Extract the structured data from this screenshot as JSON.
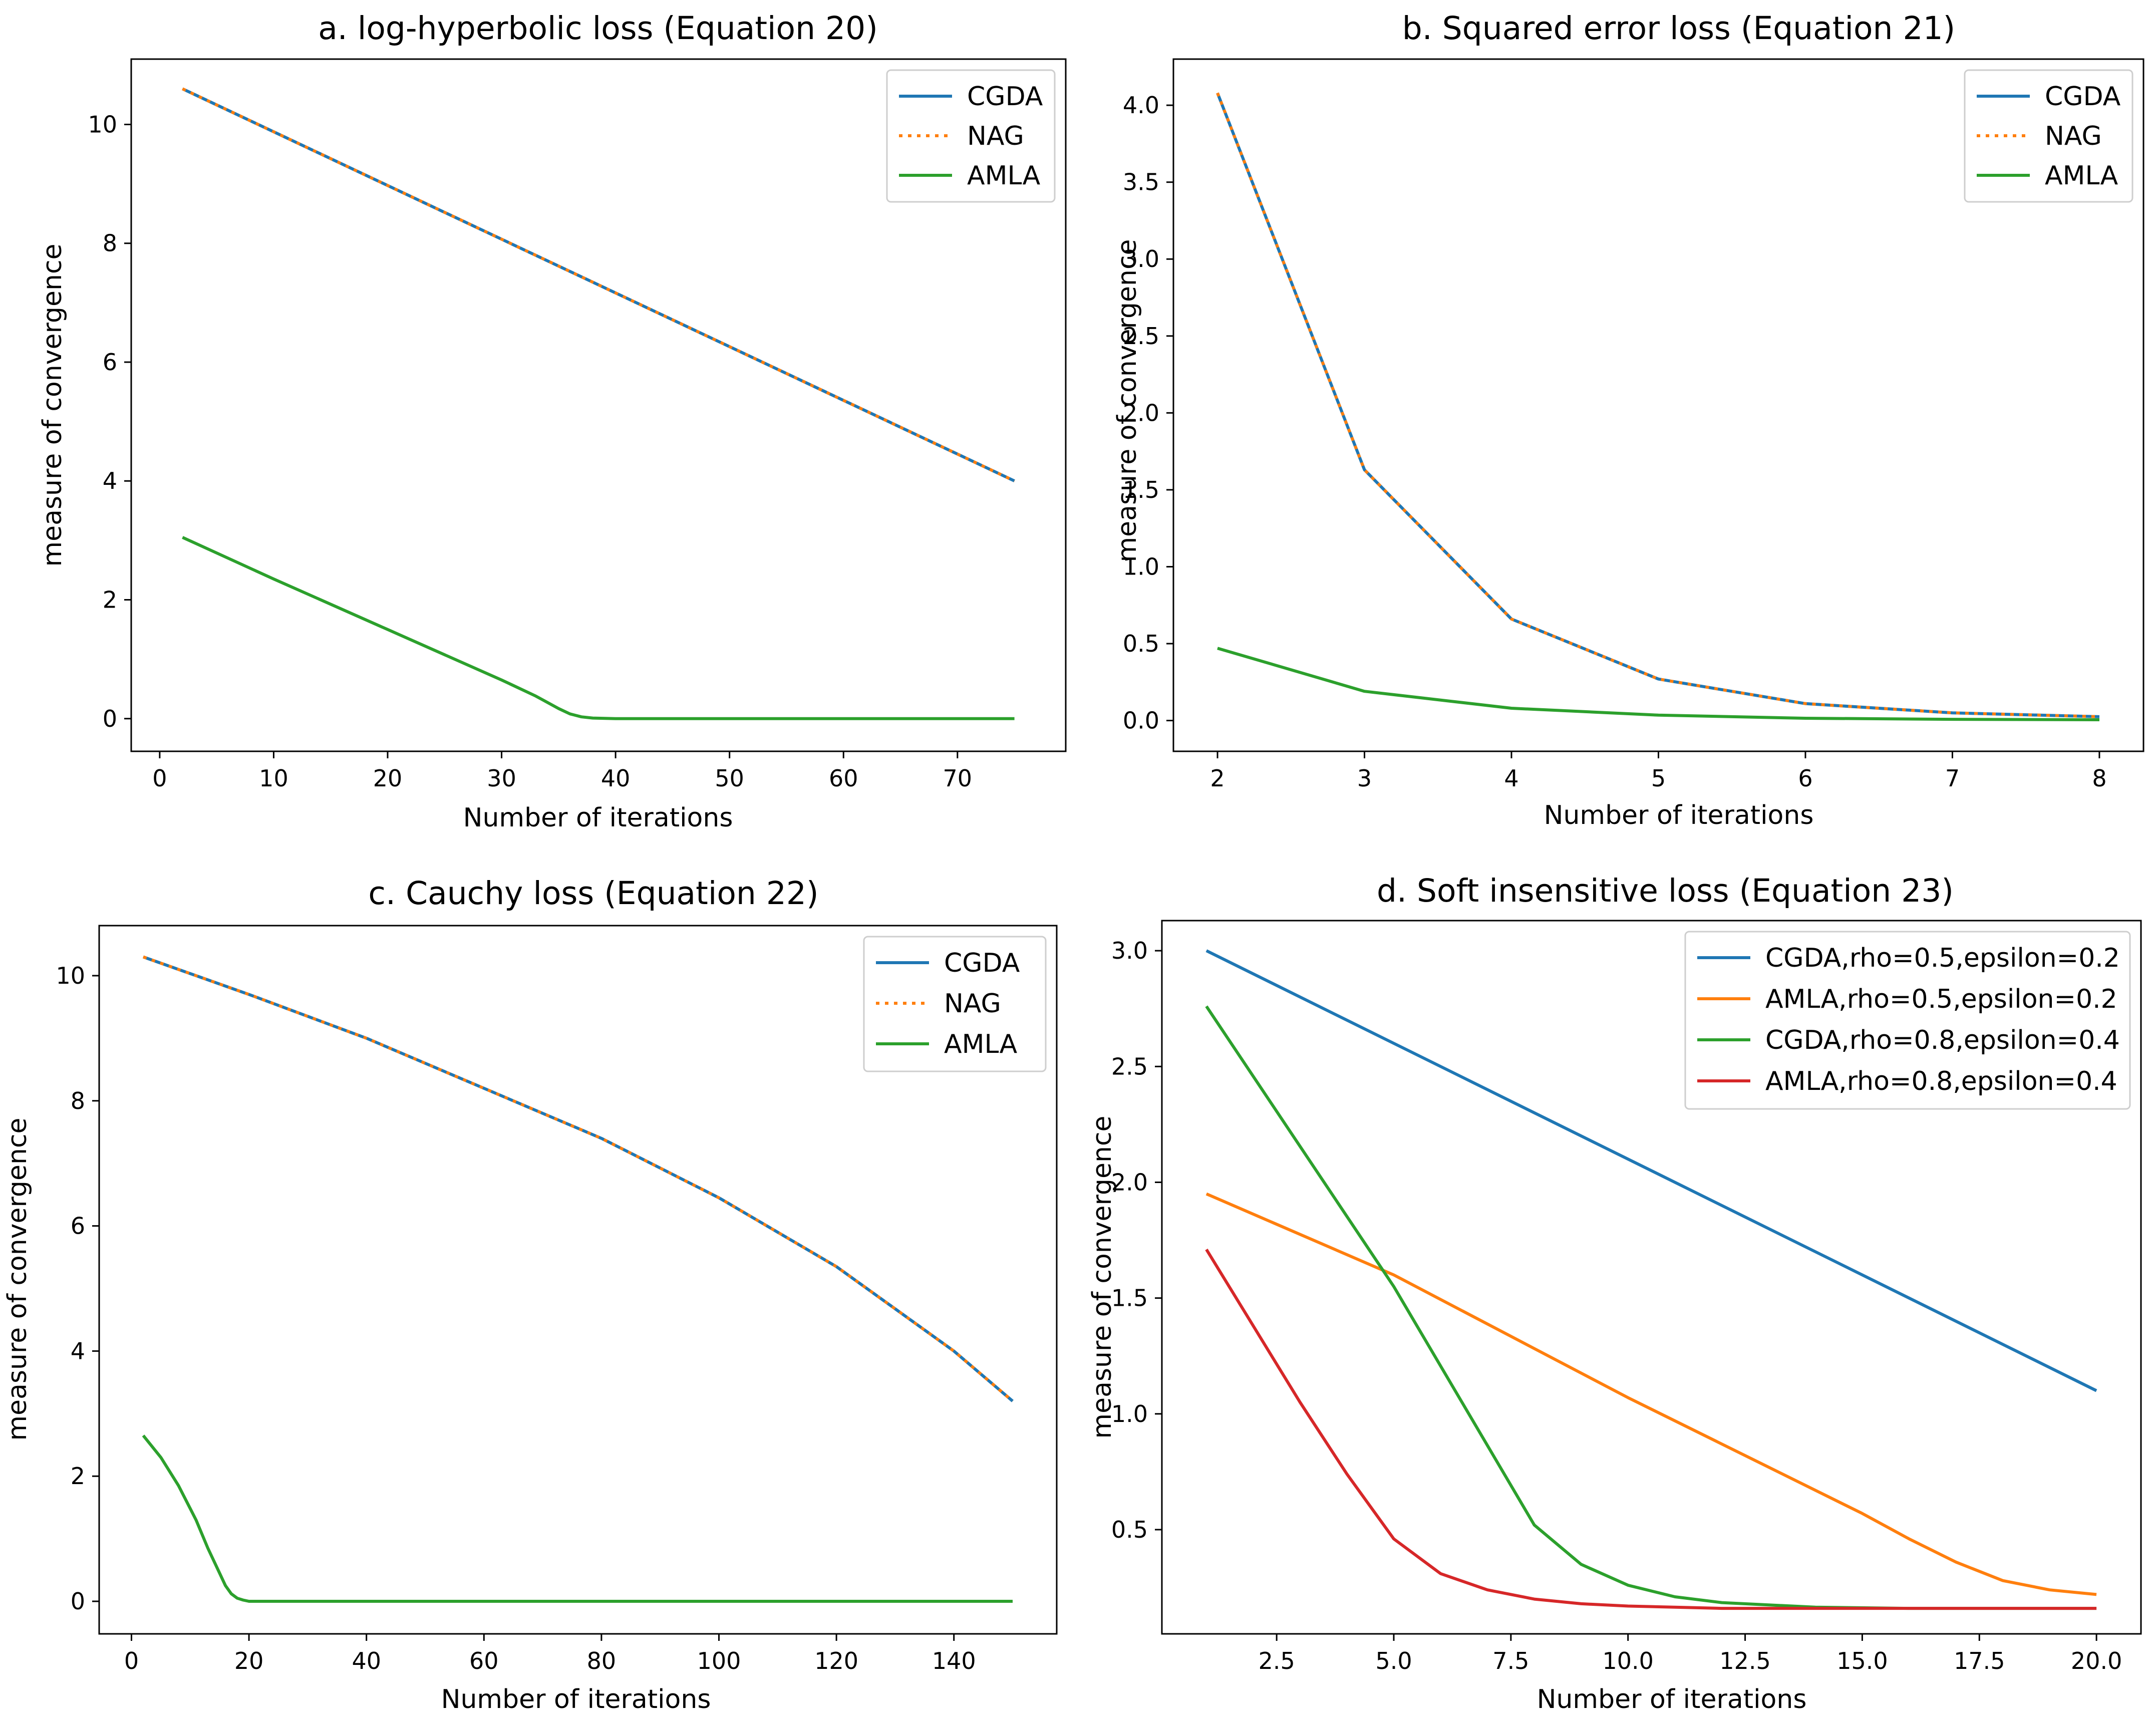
{
  "chart_data": [
    {
      "type": "line",
      "title": "a. log-hyperbolic loss (Equation 20)",
      "xlabel": "Number of iterations",
      "ylabel": "measure of convergence",
      "xlim": [
        -2.5,
        79.5
      ],
      "ylim": [
        -0.55,
        11.1
      ],
      "xticks": [
        0,
        10,
        20,
        30,
        40,
        50,
        60,
        70
      ],
      "yticks": [
        0,
        2,
        4,
        6,
        8,
        10
      ],
      "legend": "top-right",
      "series": [
        {
          "name": "CGDA",
          "color": "#1f77b4",
          "dash": "solid",
          "x": [
            2,
            75
          ],
          "y": [
            10.6,
            4.0
          ]
        },
        {
          "name": "NAG",
          "color": "#ff7f0e",
          "dash": "dotted",
          "x": [
            2,
            75
          ],
          "y": [
            10.6,
            4.0
          ]
        },
        {
          "name": "AMLA",
          "color": "#2ca02c",
          "dash": "solid",
          "x": [
            2,
            10,
            20,
            30,
            33,
            35,
            36,
            37,
            38,
            40,
            45,
            75
          ],
          "y": [
            3.05,
            2.35,
            1.5,
            0.65,
            0.38,
            0.17,
            0.08,
            0.03,
            0.01,
            0.0,
            0.0,
            0.0
          ]
        }
      ]
    },
    {
      "type": "line",
      "title": "b. Squared error loss (Equation 21)",
      "xlabel": "Number of iterations",
      "ylabel": "measure of convergence",
      "xlim": [
        1.7,
        8.3
      ],
      "ylim": [
        -0.2,
        4.3
      ],
      "xticks": [
        2,
        3,
        4,
        5,
        6,
        7,
        8
      ],
      "yticks": [
        0.0,
        0.5,
        1.0,
        1.5,
        2.0,
        2.5,
        3.0,
        3.5,
        4.0
      ],
      "ytick_labels": [
        "0.0",
        "0.5",
        "1.0",
        "1.5",
        "2.0",
        "2.5",
        "3.0",
        "3.5",
        "4.0"
      ],
      "legend": "top-right",
      "series": [
        {
          "name": "CGDA",
          "color": "#1f77b4",
          "dash": "solid",
          "x": [
            2,
            3,
            4,
            5,
            6,
            7,
            8
          ],
          "y": [
            4.08,
            1.63,
            0.66,
            0.27,
            0.11,
            0.05,
            0.025
          ]
        },
        {
          "name": "NAG",
          "color": "#ff7f0e",
          "dash": "dotted",
          "x": [
            2,
            3,
            4,
            5,
            6,
            7,
            8
          ],
          "y": [
            4.08,
            1.63,
            0.66,
            0.27,
            0.11,
            0.05,
            0.025
          ]
        },
        {
          "name": "AMLA",
          "color": "#2ca02c",
          "dash": "solid",
          "x": [
            2,
            3,
            4,
            5,
            6,
            7,
            8
          ],
          "y": [
            0.47,
            0.19,
            0.08,
            0.035,
            0.015,
            0.008,
            0.005
          ]
        }
      ]
    },
    {
      "type": "line",
      "title": "c. Cauchy loss (Equation 22)",
      "xlabel": "Number of iterations",
      "ylabel": "measure of convergence",
      "xlim": [
        -5.5,
        157.5
      ],
      "ylim": [
        -0.52,
        10.8
      ],
      "xticks": [
        0,
        20,
        40,
        60,
        80,
        100,
        120,
        140
      ],
      "yticks": [
        0,
        2,
        4,
        6,
        8,
        10
      ],
      "legend": "top-right",
      "series": [
        {
          "name": "CGDA",
          "color": "#1f77b4",
          "dash": "solid",
          "x": [
            2,
            20,
            40,
            60,
            80,
            100,
            120,
            140,
            150
          ],
          "y": [
            10.3,
            9.7,
            9.0,
            8.2,
            7.4,
            6.45,
            5.35,
            4.0,
            3.2
          ]
        },
        {
          "name": "NAG",
          "color": "#ff7f0e",
          "dash": "dotted",
          "x": [
            2,
            20,
            40,
            60,
            80,
            100,
            120,
            140,
            150
          ],
          "y": [
            10.3,
            9.7,
            9.0,
            8.2,
            7.4,
            6.45,
            5.35,
            4.0,
            3.2
          ]
        },
        {
          "name": "AMLA",
          "color": "#2ca02c",
          "dash": "solid",
          "x": [
            2,
            5,
            8,
            11,
            13,
            15,
            16,
            17,
            18,
            19,
            20,
            22,
            150
          ],
          "y": [
            2.65,
            2.3,
            1.85,
            1.3,
            0.85,
            0.45,
            0.25,
            0.12,
            0.05,
            0.02,
            0.0,
            0.0,
            0.0
          ]
        }
      ]
    },
    {
      "type": "line",
      "title": "d. Soft insensitive loss (Equation 23)",
      "xlabel": "Number of iterations",
      "ylabel": "measure of convergence",
      "xlim": [
        0.05,
        20.95
      ],
      "ylim": [
        0.05,
        3.13
      ],
      "xticks": [
        2.5,
        5.0,
        7.5,
        10.0,
        12.5,
        15.0,
        17.5,
        20.0
      ],
      "xtick_labels": [
        "2.5",
        "5.0",
        "7.5",
        "10.0",
        "12.5",
        "15.0",
        "17.5",
        "20.0"
      ],
      "yticks": [
        0.5,
        1.0,
        1.5,
        2.0,
        2.5,
        3.0
      ],
      "ytick_labels": [
        "0.5",
        "1.0",
        "1.5",
        "2.0",
        "2.5",
        "3.0"
      ],
      "legend": "top-right",
      "series": [
        {
          "name": "CGDA,rho=0.5,epsilon=0.2",
          "color": "#1f77b4",
          "dash": "solid",
          "x": [
            1,
            20
          ],
          "y": [
            3.0,
            1.1
          ]
        },
        {
          "name": "AMLA,rho=0.5,epsilon=0.2",
          "color": "#ff7f0e",
          "dash": "solid",
          "x": [
            1,
            5,
            10,
            15,
            16,
            17,
            18,
            19,
            20
          ],
          "y": [
            1.95,
            1.6,
            1.07,
            0.57,
            0.46,
            0.36,
            0.28,
            0.24,
            0.22
          ]
        },
        {
          "name": "CGDA,rho=0.8,epsilon=0.4",
          "color": "#2ca02c",
          "dash": "solid",
          "x": [
            1,
            5,
            8,
            9,
            10,
            11,
            12,
            14,
            16,
            20
          ],
          "y": [
            2.76,
            1.55,
            0.52,
            0.35,
            0.26,
            0.21,
            0.185,
            0.165,
            0.16,
            0.16
          ]
        },
        {
          "name": "AMLA,rho=0.8,epsilon=0.4",
          "color": "#d62728",
          "dash": "solid",
          "x": [
            1,
            2,
            3,
            4,
            5,
            6,
            7,
            8,
            9,
            10,
            12,
            15,
            20
          ],
          "y": [
            1.71,
            1.38,
            1.05,
            0.74,
            0.46,
            0.31,
            0.24,
            0.2,
            0.18,
            0.17,
            0.16,
            0.16,
            0.16
          ]
        }
      ]
    }
  ]
}
